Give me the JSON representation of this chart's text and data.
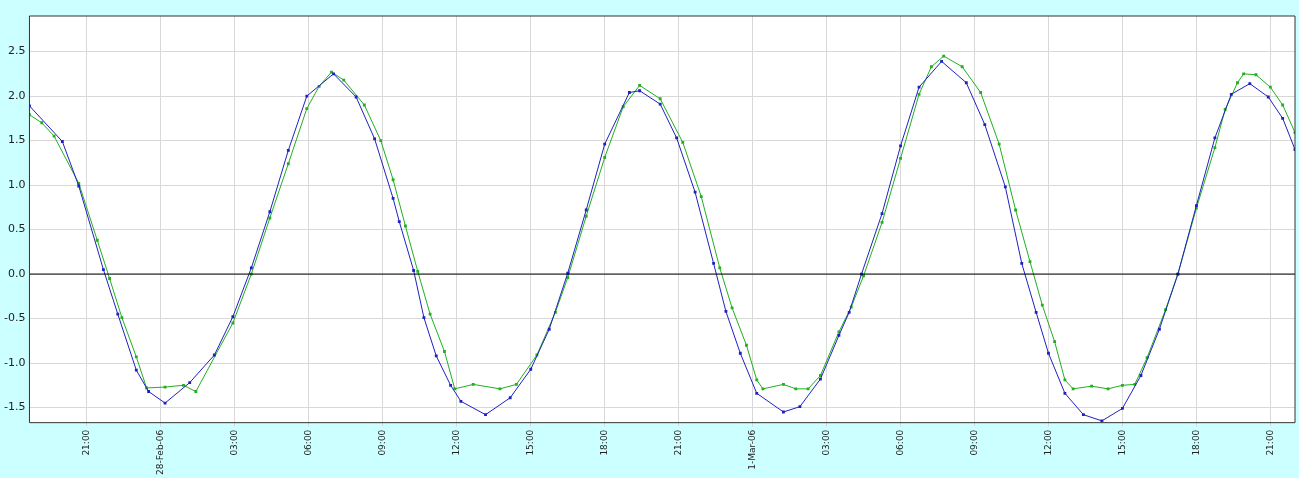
{
  "chart_data": {
    "type": "line",
    "xlim": [
      "--02-27T18:40",
      "--03-01T22:00"
    ],
    "xticks": [
      {
        "value": "--02-27T21:00",
        "label": "21:00"
      },
      {
        "value": "--02-28T00:00",
        "label": "28-Feb-06"
      },
      {
        "value": "--02-28T03:00",
        "label": "03:00"
      },
      {
        "value": "--02-28T06:00",
        "label": "06:00"
      },
      {
        "value": "--02-28T09:00",
        "label": "09:00"
      },
      {
        "value": "--02-28T12:00",
        "label": "12:00"
      },
      {
        "value": "--02-28T15:00",
        "label": "15:00"
      },
      {
        "value": "--02-28T18:00",
        "label": "18:00"
      },
      {
        "value": "--02-28T21:00",
        "label": "21:00"
      },
      {
        "value": "--03-01T00:00",
        "label": "1-Mar-06"
      },
      {
        "value": "--03-01T03:00",
        "label": "03:00"
      },
      {
        "value": "--03-01T06:00",
        "label": "06:00"
      },
      {
        "value": "--03-01T09:00",
        "label": "09:00"
      },
      {
        "value": "--03-01T12:00",
        "label": "12:00"
      },
      {
        "value": "--03-01T15:00",
        "label": "15:00"
      },
      {
        "value": "--03-01T18:00",
        "label": "18:00"
      },
      {
        "value": "--03-01T21:00",
        "label": "21:00"
      }
    ],
    "ylim": [
      -1.67,
      2.9
    ],
    "yticks": [
      {
        "value": -1.5,
        "label": "-1.5"
      },
      {
        "value": -1,
        "label": "-1.0"
      },
      {
        "value": -0.5,
        "label": "-0.5"
      },
      {
        "value": 0,
        "label": "0.0"
      },
      {
        "value": 0.5,
        "label": "0.5"
      },
      {
        "value": 1,
        "label": "1.0"
      },
      {
        "value": 1.5,
        "label": "1.5"
      },
      {
        "value": 2,
        "label": "2.0"
      },
      {
        "value": 2.5,
        "label": "2.5"
      }
    ],
    "grid": true,
    "marker": "square",
    "line_style": "solid",
    "ref_lines": [
      {
        "axis": "y",
        "value": 0,
        "color": "#000000"
      }
    ],
    "series": [
      {
        "color": "#2020c0",
        "x": [
          "--02-27T18:40",
          "--02-27T20:00",
          "--02-27T20:40",
          "--02-27T21:40",
          "--02-27T22:15",
          "--02-27T23:00",
          "--02-27T23:30",
          "--02-28T00:10",
          "--02-28T01:10",
          "--02-28T02:10",
          "--02-28T02:55",
          "--02-28T03:40",
          "--02-28T04:25",
          "--02-28T05:10",
          "--02-28T05:55",
          "--02-28T07:00",
          "--02-28T07:55",
          "--02-28T08:40",
          "--02-28T09:25",
          "--02-28T09:40",
          "--02-28T10:15",
          "--02-28T10:40",
          "--02-28T11:10",
          "--02-28T11:45",
          "--02-28T12:10",
          "--02-28T13:10",
          "--02-28T14:10",
          "--02-28T15:00",
          "--02-28T15:45",
          "--02-28T16:30",
          "--02-28T17:15",
          "--02-28T18:00",
          "--02-28T19:00",
          "--02-28T19:25",
          "--02-28T20:15",
          "--02-28T20:55",
          "--02-28T21:40",
          "--02-28T22:25",
          "--02-28T22:55",
          "--02-28T23:30",
          "--03-01T00:10",
          "--03-01T01:15",
          "--03-01T01:55",
          "--03-01T02:45",
          "--03-01T03:30",
          "--03-01T03:55",
          "--03-01T04:25",
          "--03-01T05:15",
          "--03-01T06:00",
          "--03-01T06:45",
          "--03-01T07:40",
          "--03-01T08:40",
          "--03-01T09:25",
          "--03-01T10:15",
          "--03-01T10:55",
          "--03-01T11:30",
          "--03-01T12:00",
          "--03-01T12:40",
          "--03-01T13:25",
          "--03-01T14:10",
          "--03-01T15:00",
          "--03-01T15:45",
          "--03-01T16:30",
          "--03-01T17:15",
          "--03-01T18:00",
          "--03-01T18:45",
          "--03-01T19:25",
          "--03-01T20:10",
          "--03-01T20:55",
          "--03-01T21:30",
          "--03-01T22:00"
        ],
        "values": [
          1.89,
          1.49,
          0.99,
          0.05,
          -0.45,
          -1.08,
          -1.32,
          -1.45,
          -1.22,
          -0.91,
          -0.48,
          0.07,
          0.7,
          1.39,
          2.0,
          2.25,
          1.99,
          1.52,
          0.85,
          0.59,
          0.04,
          -0.49,
          -0.92,
          -1.25,
          -1.43,
          -1.58,
          -1.39,
          -1.07,
          -0.62,
          0.01,
          0.72,
          1.46,
          2.04,
          2.06,
          1.91,
          1.53,
          0.92,
          0.12,
          -0.42,
          -0.89,
          -1.34,
          -1.55,
          -1.49,
          -1.18,
          -0.69,
          -0.43,
          0.0,
          0.68,
          1.44,
          2.1,
          2.39,
          2.15,
          1.68,
          0.98,
          0.12,
          -0.43,
          -0.89,
          -1.34,
          -1.58,
          -1.65,
          -1.51,
          -1.14,
          -0.62,
          0.0,
          0.77,
          1.53,
          2.02,
          2.14,
          1.99,
          1.75,
          1.4
        ]
      },
      {
        "color": "#20b020",
        "x": [
          "--02-27T18:40",
          "--02-27T19:10",
          "--02-27T19:40",
          "--02-27T20:40",
          "--02-27T21:25",
          "--02-27T21:55",
          "--02-27T22:25",
          "--02-27T23:00",
          "--02-27T23:25",
          "--02-28T00:10",
          "--02-28T00:55",
          "--02-28T01:25",
          "--02-28T02:55",
          "--02-28T03:40",
          "--02-28T04:25",
          "--02-28T05:10",
          "--02-28T05:55",
          "--02-28T06:25",
          "--02-28T06:55",
          "--02-28T07:25",
          "--02-28T08:15",
          "--02-28T08:55",
          "--02-28T09:25",
          "--02-28T09:55",
          "--02-28T10:25",
          "--02-28T10:55",
          "--02-28T11:30",
          "--02-28T11:55",
          "--02-28T12:40",
          "--02-28T13:45",
          "--02-28T14:25",
          "--02-28T15:15",
          "--02-28T16:00",
          "--02-28T16:30",
          "--02-28T17:15",
          "--02-28T18:00",
          "--02-28T18:45",
          "--02-28T19:25",
          "--02-28T20:15",
          "--02-28T21:10",
          "--02-28T21:55",
          "--02-28T22:40",
          "--02-28T23:10",
          "--02-28T23:45",
          "--03-01T00:10",
          "--03-01T00:25",
          "--03-01T01:15",
          "--03-01T01:45",
          "--03-01T02:15",
          "--03-01T02:45",
          "--03-01T03:30",
          "--03-01T04:00",
          "--03-01T04:30",
          "--03-01T05:15",
          "--03-01T06:00",
          "--03-01T06:45",
          "--03-01T07:15",
          "--03-01T07:45",
          "--03-01T08:30",
          "--03-01T09:15",
          "--03-01T10:00",
          "--03-01T10:40",
          "--03-01T11:15",
          "--03-01T11:45",
          "--03-01T12:15",
          "--03-01T12:40",
          "--03-01T13:00",
          "--03-01T13:45",
          "--03-01T14:25",
          "--03-01T15:00",
          "--03-01T15:30",
          "--03-01T16:00",
          "--03-01T16:45",
          "--03-01T17:15",
          "--03-01T18:00",
          "--03-01T18:45",
          "--03-01T19:10",
          "--03-01T19:40",
          "--03-01T19:55",
          "--03-01T20:25",
          "--03-01T21:00",
          "--03-01T21:30",
          "--03-01T22:00"
        ],
        "values": [
          1.79,
          1.7,
          1.55,
          1.02,
          0.38,
          -0.05,
          -0.49,
          -0.93,
          -1.28,
          -1.27,
          -1.25,
          -1.32,
          -0.55,
          0.0,
          0.63,
          1.24,
          1.86,
          2.11,
          2.27,
          2.18,
          1.9,
          1.5,
          1.06,
          0.54,
          0.03,
          -0.45,
          -0.87,
          -1.29,
          -1.24,
          -1.29,
          -1.24,
          -0.91,
          -0.43,
          -0.04,
          0.65,
          1.31,
          1.88,
          2.12,
          1.97,
          1.48,
          0.87,
          0.07,
          -0.38,
          -0.8,
          -1.19,
          -1.29,
          -1.24,
          -1.29,
          -1.29,
          -1.14,
          -0.65,
          -0.37,
          -0.02,
          0.58,
          1.3,
          2.02,
          2.33,
          2.45,
          2.33,
          2.04,
          1.46,
          0.72,
          0.14,
          -0.35,
          -0.76,
          -1.19,
          -1.29,
          -1.26,
          -1.29,
          -1.25,
          -1.24,
          -0.94,
          -0.4,
          0.0,
          0.74,
          1.42,
          1.85,
          2.15,
          2.25,
          2.24,
          2.1,
          1.9,
          1.59
        ]
      }
    ]
  }
}
